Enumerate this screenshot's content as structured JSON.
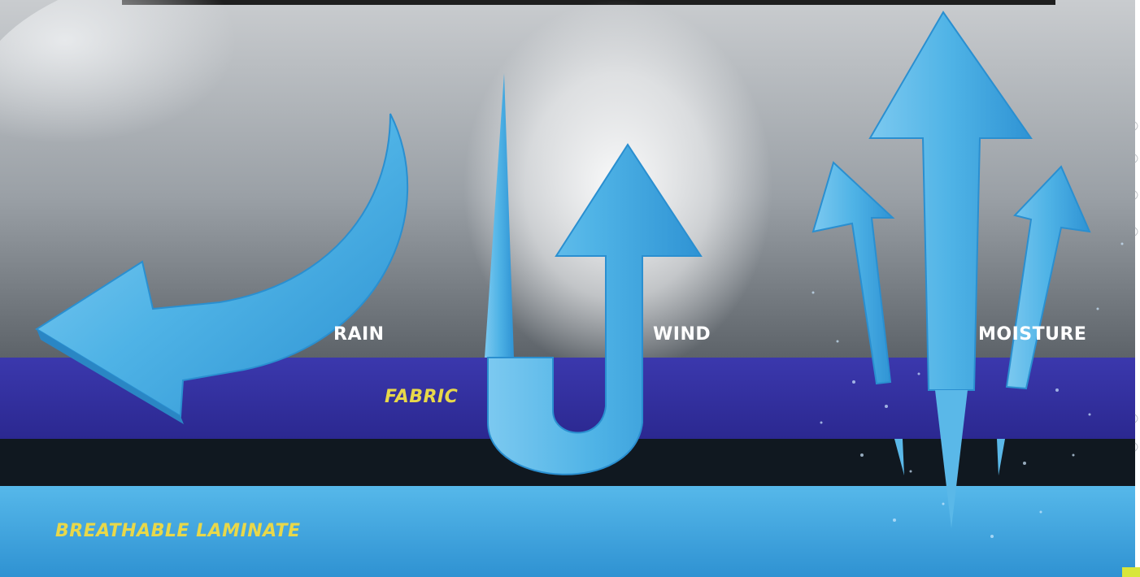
{
  "labels": {
    "rain": "RAIN",
    "wind": "WIND",
    "moisture": "MOISTURE",
    "fabric": "FABRIC",
    "laminate": "BREATHABLE LAMINATE"
  },
  "colors": {
    "arrow": "#4fb3e6",
    "arrow_dark": "#1f86c6",
    "fabric_band": "#3a36a6",
    "laminate_band": "#3fa6df",
    "sky_light": "#d8dadc",
    "sky_dark": "#6e747a",
    "label_white": "#ffffff",
    "label_yellow": "#e8d84a"
  },
  "icons": {
    "rain": "curved-arrow-deflect-icon",
    "wind": "u-turn-arrow-icon",
    "moisture": "up-arrows-icon"
  }
}
